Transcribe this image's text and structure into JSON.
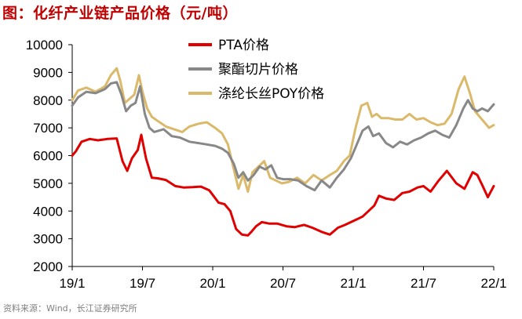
{
  "title": "图：化纤产业链产品价格（元/吨）",
  "source": "资料来源：Wind，长江证券研究所",
  "chart_data": {
    "type": "line",
    "title": "图：化纤产业链产品价格（元/吨）",
    "xlabel": "",
    "ylabel": "",
    "ylim": [
      2000,
      10000
    ],
    "yticks": [
      2000,
      3000,
      4000,
      5000,
      6000,
      7000,
      8000,
      9000,
      10000
    ],
    "ytick_labels": [
      "2000",
      "3000",
      "4000",
      "5000",
      "6000",
      "7000",
      "8000",
      "9000",
      "10000"
    ],
    "xlim": [
      0,
      36
    ],
    "xticks": [
      0,
      6,
      12,
      18,
      24,
      30,
      36
    ],
    "xtick_labels": [
      "19/1",
      "19/7",
      "20/1",
      "20/7",
      "21/1",
      "21/7",
      "22/1"
    ],
    "grid": false,
    "legend_position": "top-center",
    "series": [
      {
        "name": "PTA价格",
        "color": "#e00000",
        "x": [
          0,
          0.3,
          0.8,
          1.5,
          2.2,
          3.0,
          3.8,
          4.3,
          4.7,
          5.1,
          5.6,
          5.9,
          6.3,
          6.8,
          7.3,
          8.0,
          8.8,
          9.5,
          10.3,
          11.0,
          11.7,
          12.5,
          13.0,
          13.5,
          14.0,
          14.5,
          15.0,
          15.3,
          15.7,
          16.2,
          16.8,
          17.5,
          18.3,
          19.0,
          19.8,
          20.5,
          21.3,
          22.0,
          22.7,
          23.3,
          23.8,
          24.3,
          24.8,
          25.3,
          25.8,
          26.2,
          26.8,
          27.5,
          28.2,
          28.8,
          29.5,
          30.0,
          30.6,
          31.3,
          32.0,
          32.8,
          33.5,
          34.2,
          34.6,
          35.0,
          35.5,
          36.0
        ],
        "values": [
          6000,
          6150,
          6500,
          6600,
          6550,
          6600,
          6620,
          5800,
          5450,
          5900,
          6200,
          6750,
          5900,
          5200,
          5180,
          5120,
          4900,
          4850,
          4860,
          4880,
          4750,
          4300,
          4250,
          4000,
          3350,
          3150,
          3120,
          3250,
          3450,
          3600,
          3550,
          3550,
          3450,
          3420,
          3500,
          3400,
          3250,
          3150,
          3400,
          3500,
          3600,
          3700,
          3800,
          4000,
          4200,
          4550,
          4450,
          4400,
          4650,
          4700,
          4850,
          4900,
          4700,
          5100,
          5450,
          5000,
          4800,
          5400,
          5300,
          4950,
          4500,
          4900
        ]
      },
      {
        "name": "聚酯切片价格",
        "color": "#888888",
        "x": [
          0,
          0.5,
          1.2,
          2.0,
          2.8,
          3.3,
          3.8,
          4.2,
          4.6,
          5.0,
          5.4,
          5.8,
          6.2,
          6.6,
          7.0,
          7.8,
          8.5,
          9.2,
          10.0,
          10.8,
          11.5,
          12.2,
          12.8,
          13.3,
          13.8,
          14.2,
          14.6,
          15.0,
          15.5,
          16.0,
          16.5,
          17.0,
          17.5,
          18.0,
          18.6,
          19.3,
          20.0,
          20.7,
          21.3,
          22.0,
          22.6,
          23.2,
          23.8,
          24.3,
          24.8,
          25.3,
          25.7,
          26.2,
          26.8,
          27.4,
          28.0,
          28.6,
          29.2,
          29.8,
          30.4,
          31.0,
          31.6,
          32.2,
          32.8,
          33.4,
          33.8,
          34.2,
          34.6,
          35.0,
          35.5,
          36.0
        ],
        "values": [
          7800,
          8100,
          8300,
          8250,
          8400,
          8600,
          8650,
          8200,
          7600,
          7800,
          7900,
          8500,
          7500,
          7000,
          6850,
          6950,
          6700,
          6650,
          6500,
          6450,
          6400,
          6350,
          6250,
          6100,
          5700,
          5200,
          5400,
          5100,
          5300,
          5600,
          5500,
          5650,
          5200,
          5150,
          5150,
          5100,
          4900,
          4750,
          5100,
          4850,
          5200,
          5500,
          5900,
          6400,
          6900,
          7050,
          6700,
          6800,
          6450,
          6300,
          6500,
          6400,
          6550,
          6650,
          6800,
          6900,
          6750,
          6650,
          7100,
          7700,
          8000,
          7700,
          7600,
          7700,
          7600,
          7850
        ]
      },
      {
        "name": "涤纶长丝POY价格",
        "color": "#dbb96b",
        "x": [
          0,
          0.5,
          1.2,
          2.0,
          2.8,
          3.3,
          3.8,
          4.1,
          4.5,
          4.9,
          5.3,
          5.7,
          6.0,
          6.4,
          6.8,
          7.3,
          8.0,
          8.7,
          9.4,
          10.0,
          10.8,
          11.5,
          12.2,
          12.8,
          13.3,
          13.8,
          14.2,
          14.6,
          15.0,
          15.4,
          15.9,
          16.4,
          16.9,
          17.4,
          17.9,
          18.5,
          19.2,
          19.9,
          20.6,
          21.3,
          22.0,
          22.6,
          23.2,
          23.7,
          24.2,
          24.7,
          25.2,
          25.6,
          26.0,
          26.4,
          27.0,
          27.6,
          28.2,
          28.8,
          29.4,
          30.0,
          30.6,
          31.2,
          31.8,
          32.4,
          33.0,
          33.5,
          34.0,
          34.4,
          34.8,
          35.2,
          35.6,
          36.0
        ],
        "values": [
          8000,
          8350,
          8450,
          8300,
          8500,
          8900,
          9150,
          8700,
          7900,
          8050,
          8200,
          8900,
          8300,
          7700,
          7400,
          7250,
          7050,
          6950,
          6850,
          7050,
          7150,
          7200,
          7000,
          6800,
          6400,
          5500,
          4800,
          5300,
          4700,
          5400,
          5600,
          5800,
          5200,
          5100,
          5000,
          5050,
          5200,
          5000,
          5300,
          5100,
          5300,
          5450,
          5800,
          6000,
          7000,
          7800,
          7900,
          7400,
          7500,
          7350,
          7350,
          7300,
          7300,
          7500,
          7300,
          7350,
          7200,
          7100,
          7150,
          7500,
          8400,
          8850,
          8200,
          7600,
          7400,
          7200,
          7000,
          7100
        ]
      }
    ]
  }
}
